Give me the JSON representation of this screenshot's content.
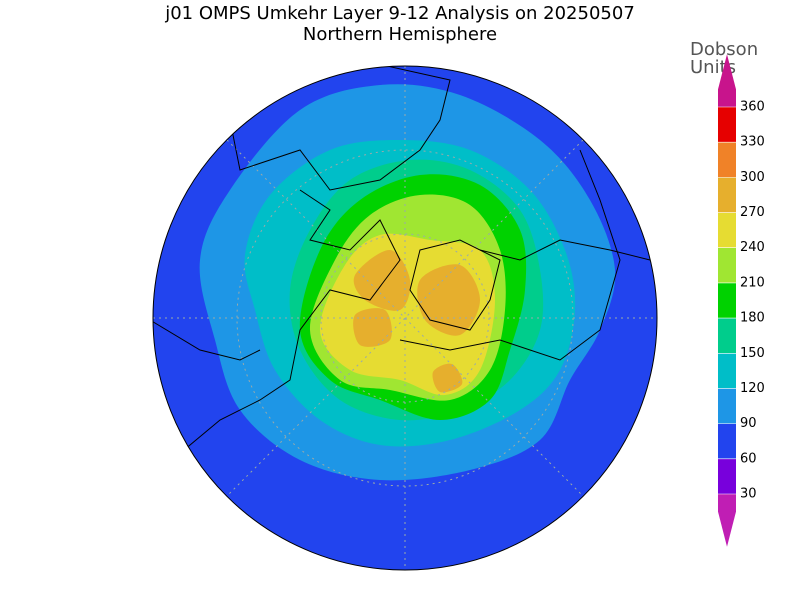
{
  "title": "j01 OMPS Umkehr Layer 9-12 Analysis on 20250507",
  "subtitle": "Northern Hemisphere",
  "colorbar": {
    "label_lines": [
      "Dobson",
      "Units"
    ],
    "levels": [
      30,
      60,
      90,
      120,
      150,
      180,
      210,
      240,
      270,
      300,
      330,
      360
    ],
    "colors": [
      "#c01eb4",
      "#7800dc",
      "#2244ee",
      "#1e96e6",
      "#00bec8",
      "#00cd8c",
      "#00d200",
      "#a0e632",
      "#e6dc32",
      "#e6af2d",
      "#f08228",
      "#e60000",
      "#c8148c"
    ]
  }
}
